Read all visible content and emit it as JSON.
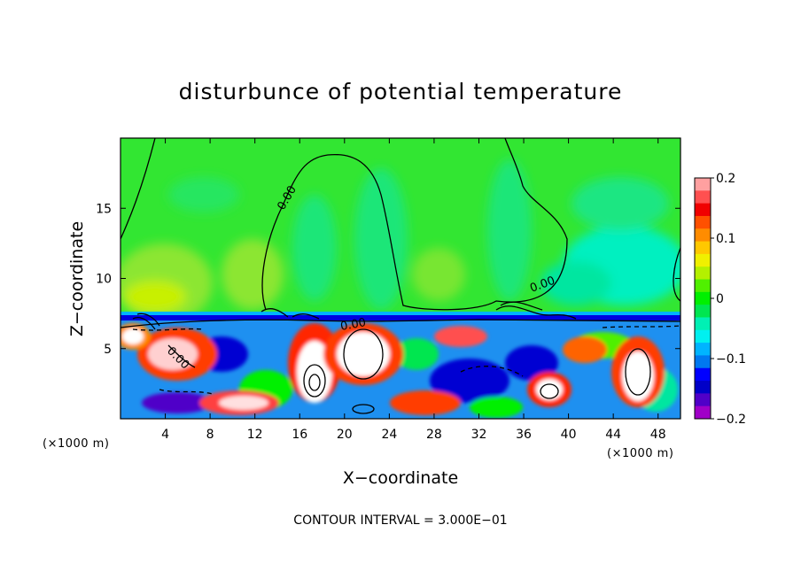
{
  "chart_data": {
    "type": "heatmap",
    "title": "disturbunce of potential temperature",
    "xlabel": "X−coordinate",
    "ylabel": "Z−coordinate",
    "x_unit_left": "(×1000 m)",
    "x_unit_right": "(×1000 m)",
    "xlim": [
      0,
      50
    ],
    "ylim": [
      0,
      20
    ],
    "x_ticks": [
      4,
      8,
      12,
      16,
      20,
      24,
      28,
      32,
      36,
      40,
      44,
      48
    ],
    "x_tick_labels": [
      "4",
      "8",
      "12",
      "16",
      "20",
      "24",
      "28",
      "32",
      "36",
      "40",
      "44",
      "48"
    ],
    "y_ticks": [
      5,
      10,
      15
    ],
    "y_tick_labels": [
      "5",
      "10",
      "15"
    ],
    "colorbar": {
      "min": -0.2,
      "max": 0.2,
      "ticks": [
        0.2,
        0.1,
        0,
        -0.1,
        -0.2
      ],
      "tick_labels": [
        "0.2",
        "0.1",
        "0",
        "−0.1",
        "−0.2"
      ],
      "colors": [
        "#ffa0a0",
        "#ff5050",
        "#f00000",
        "#ff5000",
        "#ff8c00",
        "#ffc800",
        "#f0f000",
        "#b4f000",
        "#50f000",
        "#00f000",
        "#00e650",
        "#00f0b4",
        "#00f0f0",
        "#00b4ff",
        "#0078f0",
        "#0000ff",
        "#0000c8",
        "#5000c8",
        "#a000c8"
      ]
    },
    "contour_labels": [
      "0.00",
      "0.00",
      "0.00",
      "0.00"
    ],
    "footer": "CONTOUR INTERVAL = 3.000E−01"
  }
}
